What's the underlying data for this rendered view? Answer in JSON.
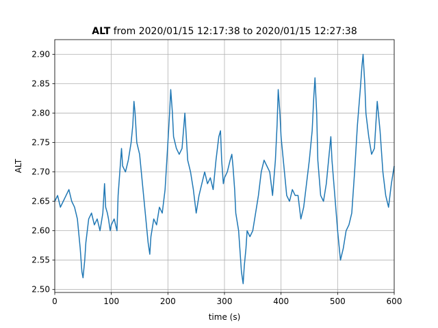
{
  "chart_data": {
    "type": "line",
    "title_bold": "ALT",
    "title_rest": " from 2020/01/15 12:17:38 to 2020/01/15 12:27:38",
    "xlabel": "time (s)",
    "ylabel": "ALT",
    "xlim": [
      0,
      600
    ],
    "ylim": [
      2.495,
      2.925
    ],
    "grid": true,
    "x_ticks": [
      0,
      100,
      200,
      300,
      400,
      500,
      600
    ],
    "y_ticks": [
      2.5,
      2.55,
      2.6,
      2.65,
      2.7,
      2.75,
      2.8,
      2.85,
      2.9
    ],
    "x_tick_labels": [
      "0",
      "100",
      "200",
      "300",
      "400",
      "500",
      "600"
    ],
    "y_tick_labels": [
      "2.50",
      "2.55",
      "2.60",
      "2.65",
      "2.70",
      "2.75",
      "2.80",
      "2.85",
      "2.90"
    ],
    "line_color": "#1f77b4",
    "series": [
      {
        "x": [
          0,
          5,
          10,
          15,
          20,
          25,
          30,
          35,
          40,
          45,
          48,
          50,
          53,
          55,
          60,
          65,
          70,
          75,
          80,
          85,
          88,
          90,
          93,
          95,
          98,
          100,
          105,
          110,
          112,
          115,
          118,
          120,
          125,
          130,
          135,
          138,
          140,
          142,
          145,
          150,
          155,
          160,
          165,
          168,
          170,
          175,
          180,
          185,
          190,
          195,
          200,
          203,
          205,
          208,
          210,
          215,
          220,
          225,
          230,
          235,
          240,
          245,
          250,
          255,
          260,
          265,
          270,
          275,
          280,
          285,
          290,
          293,
          295,
          298,
          300,
          305,
          310,
          313,
          315,
          318,
          320,
          325,
          330,
          333,
          335,
          338,
          340,
          345,
          350,
          355,
          360,
          365,
          370,
          375,
          380,
          385,
          390,
          393,
          395,
          398,
          400,
          405,
          410,
          415,
          420,
          425,
          430,
          435,
          440,
          445,
          450,
          455,
          458,
          460,
          463,
          465,
          470,
          475,
          480,
          485,
          488,
          490,
          495,
          500,
          505,
          510,
          515,
          520,
          525,
          530,
          535,
          540,
          543,
          545,
          548,
          550,
          555,
          560,
          565,
          570,
          575,
          580,
          585,
          590,
          595,
          600
        ],
        "y": [
          2.65,
          2.66,
          2.64,
          2.65,
          2.66,
          2.67,
          2.65,
          2.64,
          2.62,
          2.57,
          2.53,
          2.52,
          2.55,
          2.58,
          2.62,
          2.63,
          2.61,
          2.62,
          2.6,
          2.63,
          2.68,
          2.64,
          2.63,
          2.62,
          2.6,
          2.61,
          2.62,
          2.6,
          2.66,
          2.7,
          2.74,
          2.71,
          2.7,
          2.72,
          2.75,
          2.78,
          2.82,
          2.8,
          2.75,
          2.73,
          2.68,
          2.63,
          2.58,
          2.56,
          2.59,
          2.62,
          2.61,
          2.64,
          2.63,
          2.67,
          2.75,
          2.8,
          2.84,
          2.8,
          2.76,
          2.74,
          2.73,
          2.74,
          2.8,
          2.72,
          2.7,
          2.67,
          2.63,
          2.66,
          2.68,
          2.7,
          2.68,
          2.69,
          2.67,
          2.72,
          2.76,
          2.77,
          2.72,
          2.68,
          2.69,
          2.7,
          2.72,
          2.73,
          2.71,
          2.67,
          2.63,
          2.6,
          2.53,
          2.51,
          2.54,
          2.57,
          2.6,
          2.59,
          2.6,
          2.63,
          2.66,
          2.7,
          2.72,
          2.71,
          2.7,
          2.66,
          2.72,
          2.78,
          2.84,
          2.8,
          2.76,
          2.71,
          2.66,
          2.65,
          2.67,
          2.66,
          2.66,
          2.62,
          2.64,
          2.68,
          2.72,
          2.77,
          2.83,
          2.86,
          2.8,
          2.72,
          2.66,
          2.65,
          2.68,
          2.73,
          2.76,
          2.72,
          2.66,
          2.6,
          2.55,
          2.57,
          2.6,
          2.61,
          2.63,
          2.7,
          2.78,
          2.84,
          2.88,
          2.9,
          2.85,
          2.8,
          2.76,
          2.73,
          2.74,
          2.82,
          2.77,
          2.7,
          2.66,
          2.64,
          2.68,
          2.71
        ]
      }
    ]
  }
}
